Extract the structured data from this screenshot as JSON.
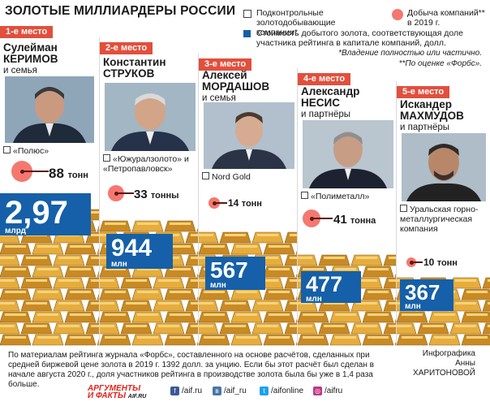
{
  "title": "ЗОЛОТЫЕ МИЛЛИАРДЕРЫ РОССИИ",
  "legend": {
    "controlled": "Подконтрольные золотодобывающие компании*",
    "value": "Стоимость добытого золота, соответствующая доле участника рейтинга в капитале компаний, долл.",
    "mining": "Добыча компаний** в 2019 г.",
    "note1": "*Владение полностью или частично.",
    "note2": "**По оценке «Форбс»."
  },
  "entries": [
    {
      "place": "1-е место",
      "first": "Сулейман",
      "last": "КЕРИМОВ",
      "family": "и семья",
      "company": "«Полюс»",
      "mining_value": 88,
      "mining_unit": "тонн",
      "value_label": "2,97",
      "value_unit": "млрд",
      "value_usd": 2970000000
    },
    {
      "place": "2-е место",
      "first": "Константин",
      "last": "СТРУКОВ",
      "family": "",
      "company": "«Южуралзолото» и «Петропавловск»",
      "mining_value": 33,
      "mining_unit": "тонны",
      "value_label": "944",
      "value_unit": "млн",
      "value_usd": 944000000
    },
    {
      "place": "3-е место",
      "first": "Алексей",
      "last": "МОРДАШОВ",
      "family": "и семья",
      "company": "Nord Gold",
      "mining_value": 14,
      "mining_unit": "тонн",
      "value_label": "567",
      "value_unit": "млн",
      "value_usd": 567000000
    },
    {
      "place": "4-е место",
      "first": "Александр",
      "last": "НЕСИС",
      "family": "и партнёры",
      "company": "«Полиметалл»",
      "mining_value": 41,
      "mining_unit": "тонна",
      "value_label": "477",
      "value_unit": "млн",
      "value_usd": 477000000
    },
    {
      "place": "5-е место",
      "first": "Искандер",
      "last": "МАХМУДОВ",
      "family": "и партнёры",
      "company": "Уральская горно-металлургическая компания",
      "mining_value": 10,
      "mining_unit": "тонн",
      "value_label": "367",
      "value_unit": "млн",
      "value_usd": 367000000
    }
  ],
  "footer": {
    "source": "По материалам рейтинга журнала «Форбс», составленного на основе расчётов, сделанных при средней биржевой цене золота в 2019 г. 1392 долл. за унцию. Если бы этот расчёт был сделан в начале августа 2020 г., доля участников рейтинга в производстве золота была бы уже в 1,4 раза больше.",
    "credit_label": "Инфографика",
    "credit_first": "Анны",
    "credit_last": "ХАРИТОНОВОЙ",
    "logo_top": "АРГУМЕНТЫ",
    "logo_bottom": "И ФАКТЫ",
    "logo_site": "AIF.RU",
    "socials": [
      "/aif.ru",
      "/aif_ru",
      "/aifonline",
      "/aifru"
    ]
  },
  "colors": {
    "accent_red": "#e24f3d",
    "value_blue": "#1560a8",
    "mining_pink": "#f47870",
    "gold": "#d99a2b"
  }
}
